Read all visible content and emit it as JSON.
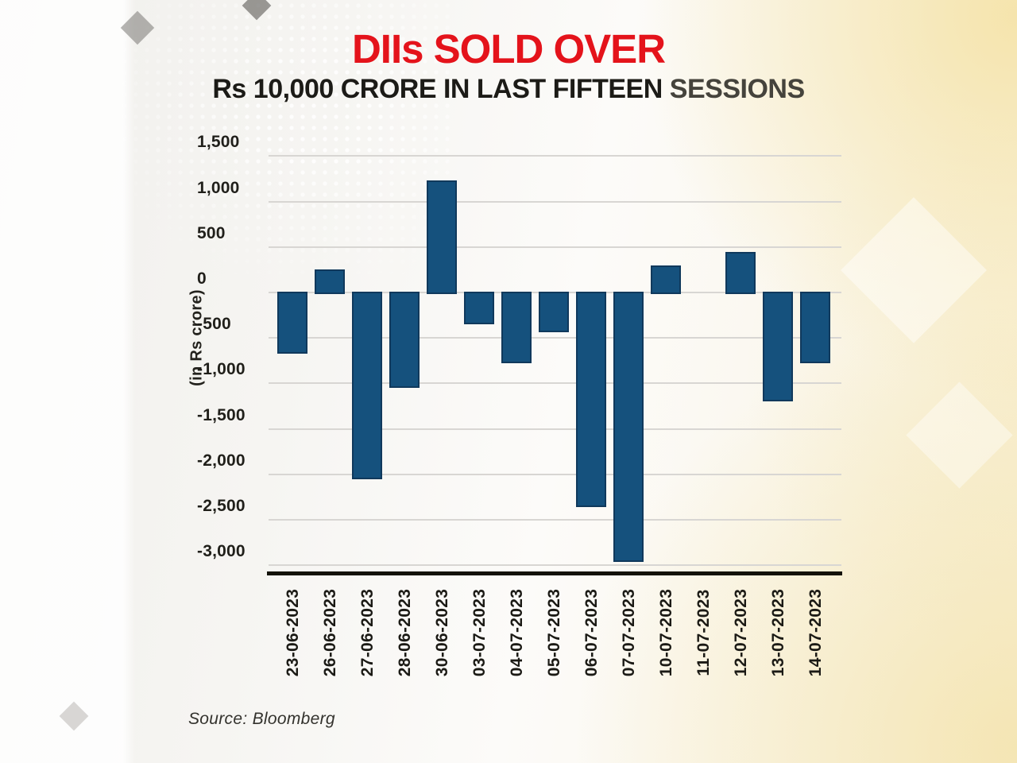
{
  "header": {
    "title_red": "DIIs SOLD OVER",
    "subtitle_black": "Rs 10,000 CRORE IN LAST FIFTEEN",
    "subtitle_gray": "SESSIONS"
  },
  "source_note": "Source: Bloomberg",
  "chart_data": {
    "type": "bar",
    "title": "DIIs SOLD OVER Rs 10,000 CRORE IN LAST FIFTEEN SESSIONS",
    "xlabel": "",
    "ylabel": "(in Rs crore)",
    "categories": [
      "23-06-2023",
      "26-06-2023",
      "27-06-2023",
      "28-06-2023",
      "30-06-2023",
      "03-07-2023",
      "04-07-2023",
      "05-07-2023",
      "06-07-2023",
      "07-07-2023",
      "10-07-2023",
      "11-07-2023",
      "12-07-2023",
      "13-07-2023",
      "14-07-2023"
    ],
    "values": [
      -670,
      250,
      -2050,
      -1050,
      1230,
      -350,
      -780,
      -440,
      -2360,
      -2960,
      300,
      0,
      450,
      -1200,
      -780
    ],
    "ylim": [
      -3000,
      1500
    ],
    "ytick_step": 500,
    "grid": true,
    "legend": false,
    "bar_color": "#15517d",
    "source": "Bloomberg"
  },
  "colors": {
    "title_red": "#e4131b",
    "title_black": "#1c1b17",
    "title_gray": "#45433c",
    "bar_fill": "#15517d",
    "bar_border": "#10395c",
    "gridline": "#d8d6d3",
    "axis_line": "#131209",
    "label_text": "#1b1a15"
  }
}
